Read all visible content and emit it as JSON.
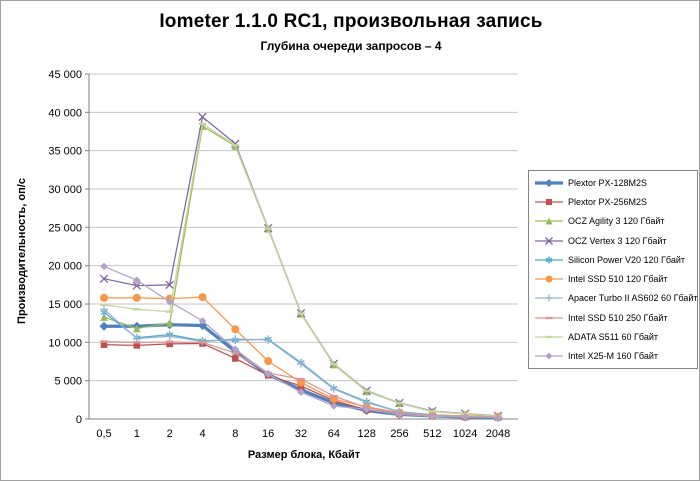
{
  "chart_data": {
    "type": "line",
    "title": "Iometer 1.1.0 RC1, произвольная запись",
    "subtitle": "Глубина очереди запросов – 4",
    "xlabel": "Размер блока, Кбайт",
    "ylabel": "Производительность, оп/с",
    "ylim": [
      0,
      45000
    ],
    "ytick_step": 5000,
    "grid": true,
    "legend_position": "right",
    "grid_color": "#c6c6c6",
    "axis_color": "#808080",
    "categories": [
      "0,5",
      "1",
      "2",
      "4",
      "8",
      "16",
      "32",
      "64",
      "128",
      "256",
      "512",
      "1024",
      "2048"
    ],
    "series": [
      {
        "name": "Plextor PX-128M2S",
        "color": "#4F81BD",
        "marker": "diamond",
        "thick": true,
        "values": [
          12100,
          12100,
          12300,
          12200,
          8800,
          5800,
          3800,
          2100,
          1100,
          600,
          400,
          250,
          200
        ]
      },
      {
        "name": "Plextor PX-256M2S",
        "color": "#C0504D",
        "marker": "square",
        "thick": false,
        "values": [
          9700,
          9600,
          9800,
          9850,
          7900,
          5700,
          4300,
          2400,
          1200,
          650,
          400,
          250,
          200
        ]
      },
      {
        "name": "OCZ Agility 3 120 Гбайт",
        "color": "#9BBB59",
        "marker": "triangle",
        "thick": false,
        "values": [
          13300,
          11800,
          12500,
          38200,
          35600,
          24800,
          13700,
          7100,
          3600,
          2050,
          1000,
          650,
          350
        ]
      },
      {
        "name": "OCZ Vertex 3 120 Гбайт",
        "color": "#8064A2",
        "marker": "x",
        "thick": false,
        "values": [
          18300,
          17400,
          17500,
          39400,
          35900,
          24900,
          13800,
          7200,
          3700,
          2100,
          1050,
          700,
          400
        ]
      },
      {
        "name": "Silicon Power V20 120 Гбайт",
        "color": "#4BACC6",
        "marker": "asterisk",
        "thick": false,
        "values": [
          13900,
          10600,
          11000,
          10200,
          10300,
          10400,
          7350,
          4000,
          2250,
          950,
          550,
          350,
          250
        ]
      },
      {
        "name": "Intel SSD 510 120 Гбайт",
        "color": "#F79646",
        "marker": "circle",
        "thick": false,
        "values": [
          15800,
          15800,
          15700,
          15900,
          11700,
          7550,
          4750,
          2600,
          1600,
          800,
          500,
          400,
          300
        ]
      },
      {
        "name": "Apacer Turbo II AS602 60 Гбайт",
        "color": "#95B3D7",
        "marker": "plus",
        "thick": false,
        "values": [
          14300,
          10500,
          10800,
          10100,
          10450,
          10300,
          7200,
          3900,
          2150,
          900,
          500,
          320,
          230
        ]
      },
      {
        "name": "Intel SSD 510 250 Гбайт",
        "color": "#D99694",
        "marker": "dash",
        "thick": false,
        "values": [
          10100,
          10000,
          10050,
          10000,
          8600,
          6000,
          5200,
          3000,
          1450,
          800,
          450,
          300,
          250
        ]
      },
      {
        "name": "ADATA S511 60 Гбайт",
        "color": "#C3D69B",
        "marker": "dash",
        "thick": false,
        "values": [
          14900,
          14300,
          14000,
          38500,
          35700,
          24850,
          13750,
          7150,
          3650,
          2070,
          1020,
          670,
          370
        ]
      },
      {
        "name": "Intel X25-M 160 Гбайт",
        "color": "#B3A2C7",
        "marker": "diamond",
        "thick": false,
        "values": [
          19900,
          18100,
          15300,
          12800,
          9100,
          5850,
          3500,
          1700,
          1250,
          600,
          350,
          250,
          200
        ]
      }
    ]
  }
}
